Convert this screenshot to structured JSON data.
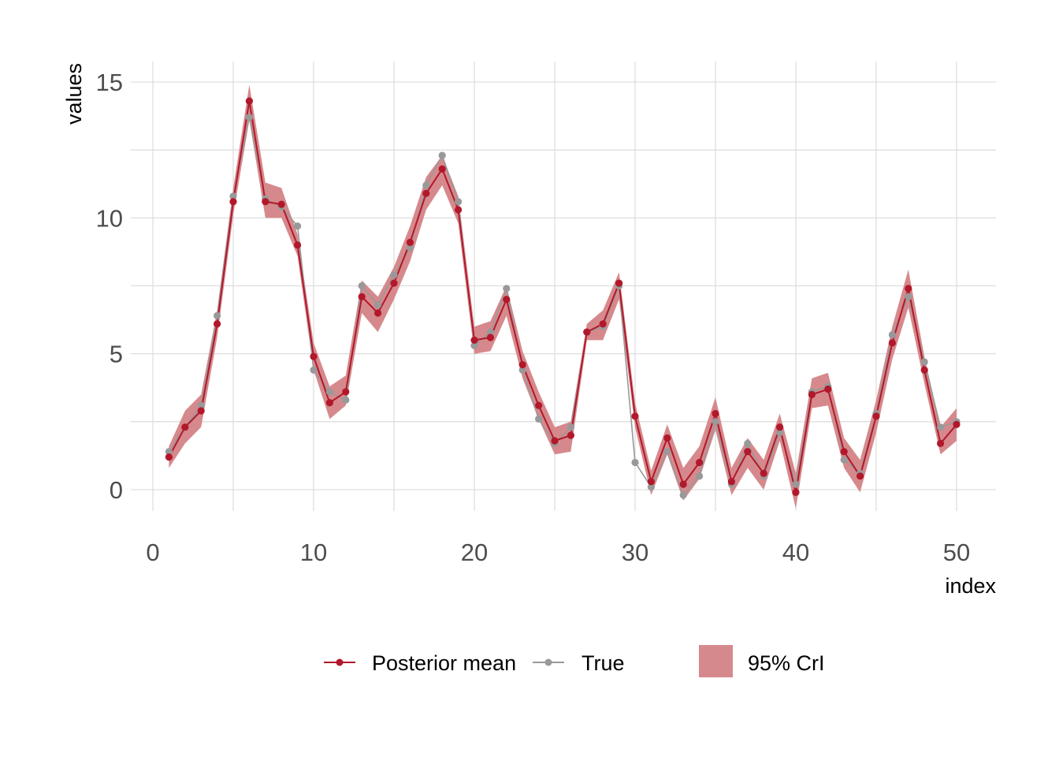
{
  "chart_data": {
    "type": "line",
    "title": "",
    "xlabel": "index",
    "ylabel": "values",
    "xlim": [
      0,
      52
    ],
    "ylim": [
      -0.7,
      15.8
    ],
    "x_ticks": [
      0,
      10,
      20,
      30,
      40,
      50
    ],
    "y_ticks": [
      0,
      5,
      10,
      15
    ],
    "grid": true,
    "legend_position": "bottom",
    "x": [
      1,
      2,
      3,
      4,
      5,
      6,
      7,
      8,
      9,
      10,
      11,
      12,
      13,
      14,
      15,
      16,
      17,
      18,
      19,
      20,
      21,
      22,
      23,
      24,
      25,
      26,
      27,
      28,
      29,
      30,
      31,
      32,
      33,
      34,
      35,
      36,
      37,
      38,
      39,
      40,
      41,
      42,
      43,
      44,
      45,
      46,
      47,
      48,
      49,
      50
    ],
    "series": [
      {
        "name": "Posterior mean",
        "color": "#b2182b",
        "values": [
          1.2,
          2.3,
          2.9,
          6.1,
          10.6,
          14.3,
          10.6,
          10.5,
          9.0,
          4.9,
          3.2,
          3.6,
          7.1,
          6.5,
          7.6,
          9.1,
          10.9,
          11.8,
          10.3,
          5.5,
          5.6,
          7.0,
          4.6,
          3.1,
          1.8,
          2.0,
          5.8,
          6.1,
          7.6,
          2.7,
          0.3,
          1.9,
          0.2,
          1.0,
          2.8,
          0.3,
          1.4,
          0.6,
          2.3,
          -0.1,
          3.5,
          3.7,
          1.4,
          0.5,
          2.7,
          5.4,
          7.4,
          4.4,
          1.7,
          2.4
        ]
      },
      {
        "name": "True",
        "color": "#999999",
        "values": [
          1.4,
          2.3,
          3.1,
          6.4,
          10.8,
          13.7,
          10.7,
          10.4,
          9.7,
          4.4,
          3.6,
          3.3,
          7.5,
          6.8,
          7.9,
          8.9,
          11.2,
          12.3,
          10.6,
          5.3,
          5.8,
          7.4,
          4.4,
          2.6,
          1.7,
          2.3,
          5.8,
          6.0,
          7.5,
          1.0,
          0.1,
          1.4,
          -0.2,
          0.5,
          2.5,
          0.2,
          1.7,
          0.5,
          2.1,
          0.2,
          3.6,
          3.8,
          1.1,
          0.6,
          2.8,
          5.7,
          7.1,
          4.7,
          2.3,
          2.5
        ]
      }
    ],
    "band": {
      "name": "95% CrI",
      "color": "#d6898c",
      "lower": [
        0.8,
        1.7,
        2.3,
        5.6,
        10.1,
        13.6,
        10.0,
        10.0,
        8.6,
        4.4,
        2.6,
        3.1,
        6.5,
        5.8,
        7.0,
        8.4,
        10.3,
        11.2,
        9.8,
        5.0,
        5.1,
        6.4,
        4.1,
        2.6,
        1.3,
        1.4,
        5.5,
        5.5,
        7.0,
        2.3,
        -0.2,
        1.3,
        -0.4,
        0.4,
        2.2,
        -0.2,
        0.8,
        0.0,
        1.8,
        -0.7,
        3.0,
        3.1,
        0.8,
        -0.1,
        2.1,
        4.8,
        6.7,
        3.9,
        1.3,
        1.8
      ],
      "upper": [
        1.6,
        2.9,
        3.5,
        6.6,
        11.1,
        14.9,
        11.3,
        11.1,
        9.4,
        5.4,
        3.8,
        4.2,
        7.7,
        7.1,
        8.2,
        9.7,
        11.5,
        12.3,
        10.8,
        6.0,
        6.2,
        7.5,
        5.1,
        3.6,
        2.3,
        2.5,
        6.1,
        6.6,
        8.0,
        3.2,
        0.7,
        2.4,
        0.8,
        1.6,
        3.4,
        0.8,
        1.9,
        1.1,
        2.8,
        0.6,
        4.1,
        4.3,
        1.9,
        1.1,
        3.3,
        6.0,
        8.1,
        4.9,
        2.3,
        3.0
      ]
    }
  }
}
